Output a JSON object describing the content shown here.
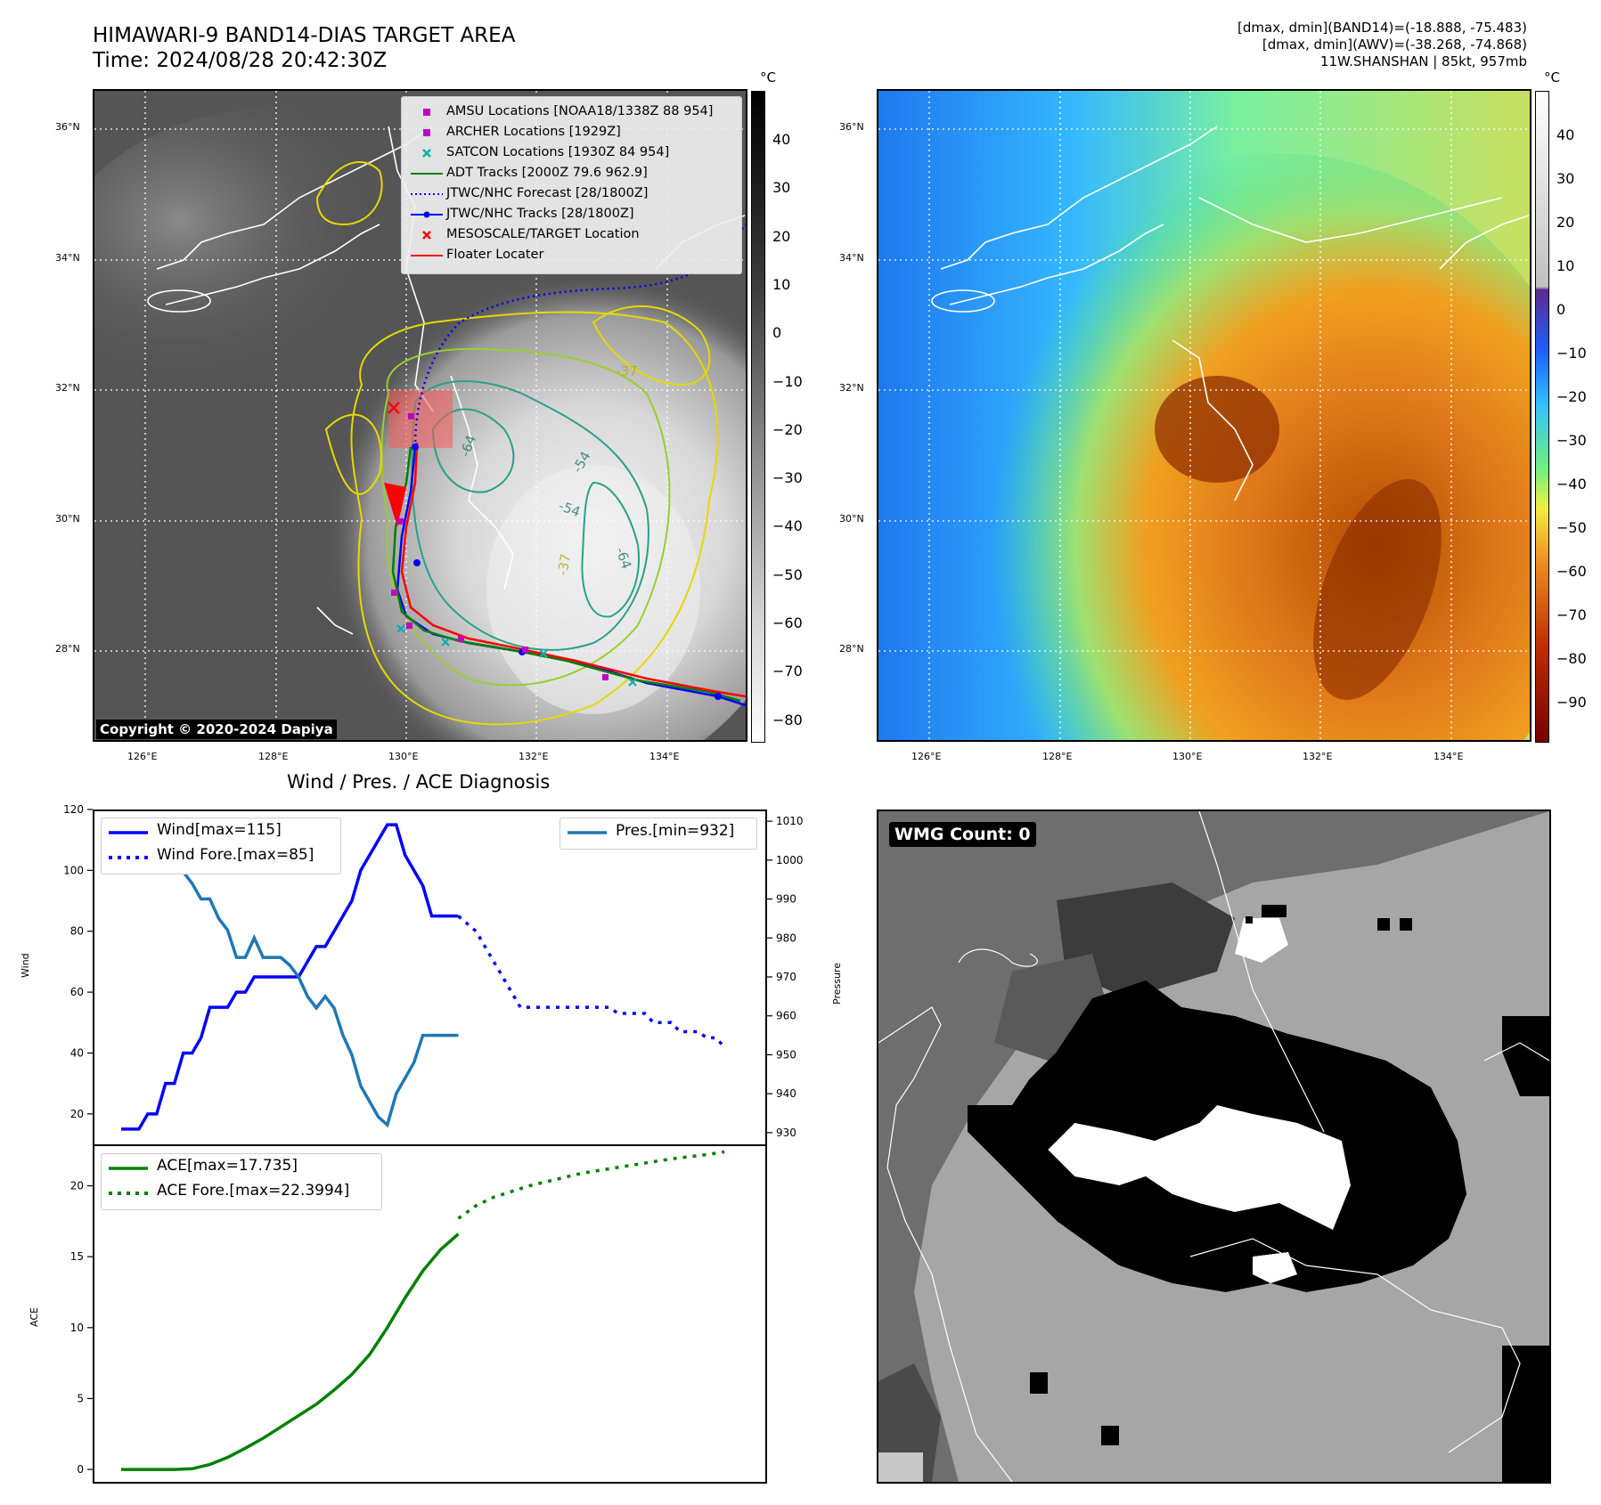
{
  "header": {
    "title_line1": "HIMAWARI-9 BAND14-DIAS TARGET AREA",
    "title_line2": "Time: 2024/08/28 20:42:30Z",
    "right_line1": "[dmax, dmin](BAND14)=(-18.888, -75.483)",
    "right_line2": "[dmax, dmin](AWV)=(-38.268, -74.868)",
    "right_line3": "11W.SHANSHAN | 85kt, 957mb"
  },
  "map": {
    "lat_labels": [
      "36°N",
      "34°N",
      "32°N",
      "30°N",
      "28°N"
    ],
    "lon_labels": [
      "126°E",
      "128°E",
      "130°E",
      "132°E",
      "134°E"
    ],
    "copyright": "Copyright © 2020-2024 Dapiya",
    "contour_labels": [
      "-37",
      "-64",
      "-54",
      "-54",
      "-64",
      "-37"
    ],
    "legend": [
      {
        "label": "AMSU Locations [NOAA18/1338Z 88 954]",
        "symbol": "square",
        "color": "#c000c0"
      },
      {
        "label": "ARCHER Locations [1929Z]",
        "symbol": "square",
        "color": "#c000c0"
      },
      {
        "label": "SATCON Locations [1930Z 84 954]",
        "symbol": "x",
        "color": "#00b0b0"
      },
      {
        "label": "ADT Tracks [2000Z 79.6 962.9]",
        "symbol": "line",
        "color": "#008000"
      },
      {
        "label": "JTWC/NHC Forecast [28/1800Z]",
        "symbol": "dotted",
        "color": "#0000ff"
      },
      {
        "label": "JTWC/NHC Tracks [28/1800Z]",
        "symbol": "line-dot",
        "color": "#0000ff"
      },
      {
        "label": "MESOSCALE/TARGET Location",
        "symbol": "x",
        "color": "#ff0000"
      },
      {
        "label": "Floater Locater",
        "symbol": "line",
        "color": "#ff0000"
      }
    ]
  },
  "colorbar_gray": {
    "unit": "°C",
    "ticks": [
      "40",
      "30",
      "20",
      "10",
      "0",
      "−10",
      "−20",
      "−30",
      "−40",
      "−50",
      "−60",
      "−70",
      "−80"
    ]
  },
  "colorbar_color": {
    "unit": "°C",
    "ticks": [
      "40",
      "30",
      "20",
      "10",
      "0",
      "−10",
      "−20",
      "−30",
      "−40",
      "−50",
      "−60",
      "−70",
      "−80",
      "−90"
    ]
  },
  "wmg": {
    "badge": "WMG Count: 0"
  },
  "chart_data": [
    {
      "type": "line",
      "title": "Wind / Pres. / ACE Diagnosis",
      "ylabel": "Wind",
      "ylim": [
        10,
        120
      ],
      "y_ticks": [
        "120",
        "100",
        "80",
        "60",
        "40",
        "20"
      ],
      "x": [
        0,
        1,
        2,
        3,
        4,
        5,
        6,
        7,
        8,
        9,
        10,
        11,
        12,
        13,
        14,
        15,
        16,
        17,
        18,
        19,
        20,
        21,
        22,
        23,
        24,
        25,
        26,
        27,
        28,
        29,
        30,
        31,
        32,
        33,
        34,
        35,
        36,
        37,
        38,
        39,
        40,
        41,
        42,
        43,
        44,
        45,
        46,
        47,
        48,
        49,
        50,
        51,
        52,
        53,
        54,
        55,
        56,
        57,
        58,
        59,
        60,
        61,
        62,
        63,
        64,
        65,
        66,
        67,
        68
      ],
      "series": [
        {
          "name": "Wind[max=115]",
          "style": "solid",
          "color": "#0000ff",
          "x": [
            0,
            2,
            3,
            4,
            5,
            6,
            7,
            8,
            9,
            10,
            11,
            12,
            13,
            14,
            15,
            16,
            17,
            18,
            19,
            20,
            21,
            22,
            23,
            24,
            25,
            26,
            27,
            28,
            29,
            30,
            31,
            32,
            33,
            34,
            35,
            36,
            37,
            38
          ],
          "values": [
            15,
            15,
            20,
            20,
            30,
            30,
            40,
            40,
            45,
            55,
            55,
            55,
            60,
            60,
            65,
            65,
            65,
            65,
            65,
            65,
            70,
            75,
            75,
            80,
            85,
            90,
            100,
            105,
            110,
            115,
            115,
            105,
            100,
            95,
            85,
            85,
            85,
            85
          ]
        },
        {
          "name": "Wind Fore.[max=85]",
          "style": "dotted",
          "color": "#0000ff",
          "x": [
            38,
            40,
            41,
            42,
            43,
            44,
            45,
            46,
            47,
            48,
            49,
            50,
            51,
            52,
            53,
            54,
            55,
            56,
            57,
            58,
            59,
            60,
            61,
            62,
            63,
            64,
            65,
            66,
            67,
            68
          ],
          "values": [
            85,
            80,
            75,
            70,
            65,
            60,
            55,
            55,
            55,
            55,
            55,
            55,
            55,
            55,
            55,
            55,
            55,
            53,
            53,
            53,
            53,
            50,
            50,
            50,
            47,
            47,
            47,
            45,
            45,
            42
          ]
        }
      ]
    },
    {
      "type": "line",
      "ylabel": "Pressure",
      "ylim": [
        927,
        1013
      ],
      "y_ticks": [
        "1010",
        "1000",
        "990",
        "980",
        "970",
        "960",
        "950",
        "940",
        "930"
      ],
      "series": [
        {
          "name": "Pres.[min=932]",
          "style": "solid",
          "color": "#1f77b4",
          "x": [
            0,
            1,
            2,
            3,
            4,
            5,
            6,
            7,
            8,
            9,
            10,
            11,
            12,
            13,
            14,
            15,
            16,
            17,
            18,
            19,
            20,
            21,
            22,
            23,
            24,
            25,
            26,
            27,
            28,
            29,
            30,
            31,
            32,
            33,
            34,
            35,
            36,
            37,
            38
          ],
          "values": [
            1008,
            1008,
            1005,
            1005,
            1003,
            1003,
            1000,
            997,
            994,
            990,
            990,
            985,
            982,
            975,
            975,
            980,
            975,
            975,
            975,
            973,
            970,
            965,
            962,
            965,
            962,
            955,
            950,
            942,
            938,
            934,
            932,
            940,
            944,
            948,
            955,
            955,
            955,
            955,
            955
          ]
        }
      ]
    },
    {
      "type": "line",
      "ylabel": "ACE",
      "ylim": [
        -1,
        22.8
      ],
      "y_ticks": [
        "20",
        "15",
        "10",
        "5",
        "0"
      ],
      "series": [
        {
          "name": "ACE[max=17.735]",
          "style": "solid",
          "color": "#008000",
          "x": [
            0,
            2,
            4,
            6,
            8,
            10,
            12,
            14,
            16,
            18,
            20,
            22,
            24,
            26,
            28,
            30,
            32,
            34,
            36,
            38
          ],
          "values": [
            0,
            0,
            0,
            0,
            0.05,
            0.35,
            0.85,
            1.5,
            2.2,
            3.0,
            3.8,
            4.6,
            5.6,
            6.7,
            8.1,
            10.0,
            12.1,
            14.0,
            15.5,
            16.6
          ]
        },
        {
          "name": "ACE Fore.[max=22.3994]",
          "style": "dotted",
          "color": "#008000",
          "x": [
            38,
            40,
            42,
            44,
            46,
            48,
            50,
            52,
            54,
            56,
            58,
            60,
            62,
            64,
            66,
            68
          ],
          "values": [
            17.7,
            18.6,
            19.2,
            19.6,
            20.0,
            20.3,
            20.6,
            20.9,
            21.1,
            21.3,
            21.5,
            21.7,
            21.9,
            22.05,
            22.2,
            22.4
          ]
        }
      ]
    }
  ]
}
